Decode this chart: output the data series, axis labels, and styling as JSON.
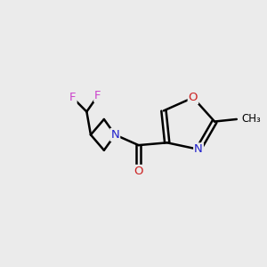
{
  "background_color": "#ebebeb",
  "bond_color": "#000000",
  "atom_colors": {
    "F": "#cc44cc",
    "N": "#2020cc",
    "O": "#cc2020"
  },
  "figsize": [
    3.0,
    3.0
  ],
  "dpi": 100
}
